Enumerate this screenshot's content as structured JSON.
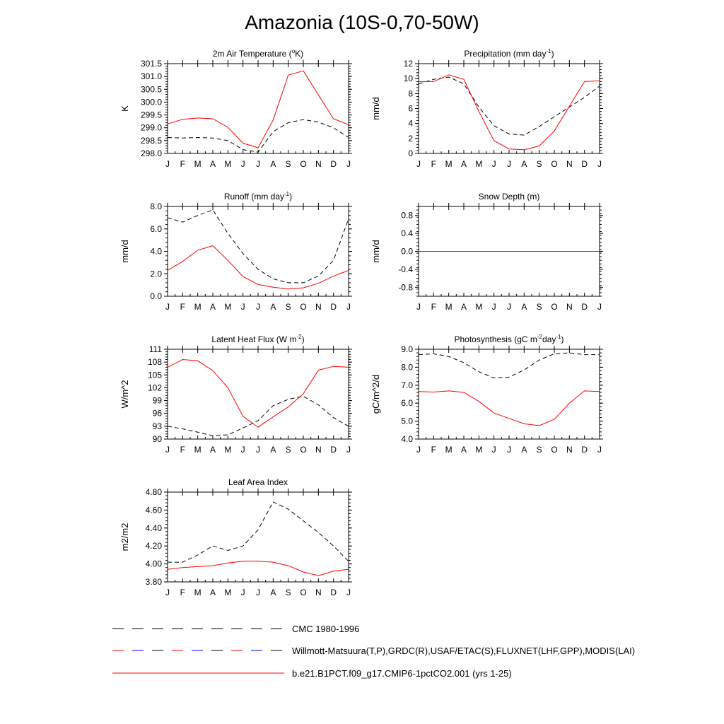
{
  "title": "Amazonia (10S-0,70-50W)",
  "months": [
    "J",
    "F",
    "M",
    "A",
    "M",
    "J",
    "J",
    "A",
    "S",
    "O",
    "N",
    "D",
    "J"
  ],
  "colors": {
    "model": "#ff0000",
    "obs": "#000000",
    "obs_alt": "#ff0000",
    "obs_alt2": "#0000ff"
  },
  "legend": [
    {
      "label": "CMC 1980-1996",
      "style": "dashed",
      "color": "#000000"
    },
    {
      "label": "Willmott-Matsuura(T,P),GRDC(R),USAF/ETAC(S),FLUXNET(LHF,GPP),MODIS(LAI)",
      "style": "dashed-multicolor",
      "color": "#ff0000"
    },
    {
      "label": "b.e21.B1PCT.f09_g17.CMIP6-1pctCO2.001 (yrs 1-25)",
      "style": "solid",
      "color": "#ff0000"
    }
  ],
  "chart_data": [
    {
      "type": "line",
      "title": "2m Air Temperature (",
      "title_sup": "o",
      "title_end": "K)",
      "ylabel": "K",
      "ylim": [
        298.0,
        301.5
      ],
      "yticks": [
        298.0,
        298.5,
        299.0,
        299.5,
        300.0,
        300.5,
        301.0,
        301.5
      ],
      "ytick_labels": [
        "298.0",
        "298.5",
        "299.0",
        "299.5",
        "300.0",
        "300.5",
        "301.0",
        "301.5"
      ],
      "series": [
        {
          "name": "CMC 1980-1996",
          "values": [
            298.62,
            298.6,
            298.62,
            298.6,
            298.5,
            298.15,
            298.05,
            298.85,
            299.2,
            299.32,
            299.22,
            299.0,
            298.62
          ]
        },
        {
          "name": "b.e21.B1PCT.f09_g17.CMIP6-1pctCO2.001 (yrs 1-25)",
          "values": [
            299.15,
            299.33,
            299.38,
            299.35,
            299.02,
            298.4,
            298.22,
            299.3,
            301.05,
            301.22,
            300.28,
            299.35,
            299.12
          ]
        }
      ]
    },
    {
      "type": "line",
      "title": "Precipitation (mm day",
      "title_sup": "-1",
      "title_end": ")",
      "ylabel": "mm/d",
      "ylim": [
        0,
        12
      ],
      "yticks": [
        0,
        2,
        4,
        6,
        8,
        10,
        12
      ],
      "ytick_labels": [
        "0",
        "2",
        "4",
        "6",
        "8",
        "10",
        "12"
      ],
      "series": [
        {
          "name": "CMC 1980-1996",
          "values": [
            9.3,
            9.9,
            10.2,
            9.3,
            6.2,
            3.7,
            2.6,
            2.45,
            3.6,
            4.9,
            6.2,
            7.5,
            9.0
          ]
        },
        {
          "name": "b.e21.B1PCT.f09_g17.CMIP6-1pctCO2.001 (yrs 1-25)",
          "values": [
            9.6,
            9.6,
            10.5,
            9.9,
            5.6,
            1.7,
            0.6,
            0.5,
            1.0,
            3.0,
            6.3,
            9.6,
            9.7
          ]
        }
      ]
    },
    {
      "type": "line",
      "title": "Runoff (mm day",
      "title_sup": "-1",
      "title_end": ")",
      "ylabel": "mm/d",
      "ylim": [
        0,
        8
      ],
      "yticks": [
        0,
        2,
        4,
        6,
        8
      ],
      "ytick_labels": [
        "0.0",
        "2.0",
        "4.0",
        "6.0",
        "8.0"
      ],
      "series": [
        {
          "name": "CMC 1980-1996",
          "values": [
            7.0,
            6.6,
            7.2,
            7.7,
            5.6,
            3.8,
            2.4,
            1.55,
            1.2,
            1.2,
            1.8,
            3.2,
            6.9
          ]
        },
        {
          "name": "b.e21.B1PCT.f09_g17.CMIP6-1pctCO2.001 (yrs 1-25)",
          "values": [
            2.3,
            3.1,
            4.1,
            4.5,
            3.2,
            1.75,
            1.05,
            0.8,
            0.65,
            0.75,
            1.15,
            1.8,
            2.3
          ]
        }
      ]
    },
    {
      "type": "line",
      "title": "Snow Depth (m)",
      "title_sup": "",
      "title_end": "",
      "ylabel": "mm/d",
      "ylim": [
        -1.0,
        1.0
      ],
      "yticks": [
        -0.8,
        -0.4,
        0.0,
        0.4,
        0.8
      ],
      "ytick_labels": [
        "-0.8",
        "-0.4",
        "0.0",
        "0.4",
        "0.8"
      ],
      "series": [
        {
          "name": "CMC 1980-1996",
          "values": [
            0,
            0,
            0,
            0,
            0,
            0,
            0,
            0,
            0,
            0,
            0,
            0,
            0
          ]
        },
        {
          "name": "b.e21.B1PCT.f09_g17.CMIP6-1pctCO2.001 (yrs 1-25)",
          "values": [
            0,
            0,
            0,
            0,
            0,
            0,
            0,
            0,
            0,
            0,
            0,
            0,
            0
          ]
        }
      ]
    },
    {
      "type": "line",
      "title": "Latent Heat Flux (W m",
      "title_sup": "-2",
      "title_end": ")",
      "ylabel": "W/m^2",
      "ylim": [
        90,
        111
      ],
      "yticks": [
        90,
        93,
        96,
        99,
        102,
        105,
        108,
        111
      ],
      "ytick_labels": [
        "90",
        "93",
        "96",
        "99",
        "102",
        "105",
        "108",
        "111"
      ],
      "series": [
        {
          "name": "CMC 1980-1996",
          "values": [
            93.0,
            92.4,
            91.6,
            90.8,
            91.0,
            92.6,
            94.3,
            97.8,
            99.3,
            100.0,
            98.0,
            95.0,
            93.0
          ]
        },
        {
          "name": "b.e21.B1PCT.f09_g17.CMIP6-1pctCO2.001 (yrs 1-25)",
          "values": [
            106.8,
            108.6,
            108.3,
            106.0,
            102.0,
            95.3,
            92.8,
            95.2,
            97.5,
            100.6,
            106.1,
            107.0,
            106.8
          ]
        }
      ]
    },
    {
      "type": "line",
      "title": "Photosynthesis (gC m",
      "title_sup": "-2",
      "title_mid": "day",
      "title_sup2": "-1",
      "title_end": ")",
      "ylabel": "gC/m^2/d",
      "ylim": [
        4.0,
        9.0
      ],
      "yticks": [
        4,
        5,
        6,
        7,
        8,
        9
      ],
      "ytick_labels": [
        "4.0",
        "5.0",
        "6.0",
        "7.0",
        "8.0",
        "9.0"
      ],
      "series": [
        {
          "name": "CMC 1980-1996",
          "values": [
            8.7,
            8.75,
            8.6,
            8.25,
            7.75,
            7.4,
            7.45,
            7.85,
            8.4,
            8.75,
            8.8,
            8.7,
            8.7
          ]
        },
        {
          "name": "b.e21.B1PCT.f09_g17.CMIP6-1pctCO2.001 (yrs 1-25)",
          "values": [
            6.65,
            6.62,
            6.68,
            6.6,
            6.1,
            5.45,
            5.15,
            4.85,
            4.75,
            5.1,
            6.0,
            6.68,
            6.65
          ]
        }
      ]
    },
    {
      "type": "line",
      "title": "Leaf Area Index",
      "title_sup": "",
      "title_end": "",
      "ylabel": "m2/m2",
      "ylim": [
        3.8,
        4.8
      ],
      "yticks": [
        3.8,
        4.0,
        4.2,
        4.4,
        4.6,
        4.8
      ],
      "ytick_labels": [
        "3.80",
        "4.00",
        "4.20",
        "4.40",
        "4.60",
        "4.80"
      ],
      "series": [
        {
          "name": "CMC 1980-1996",
          "values": [
            4.02,
            4.02,
            4.1,
            4.2,
            4.15,
            4.2,
            4.38,
            4.69,
            4.61,
            4.48,
            4.35,
            4.2,
            4.03
          ]
        },
        {
          "name": "b.e21.B1PCT.f09_g17.CMIP6-1pctCO2.001 (yrs 1-25)",
          "values": [
            3.94,
            3.96,
            3.97,
            3.98,
            4.01,
            4.03,
            4.03,
            4.02,
            3.98,
            3.91,
            3.87,
            3.92,
            3.94
          ]
        }
      ]
    }
  ]
}
